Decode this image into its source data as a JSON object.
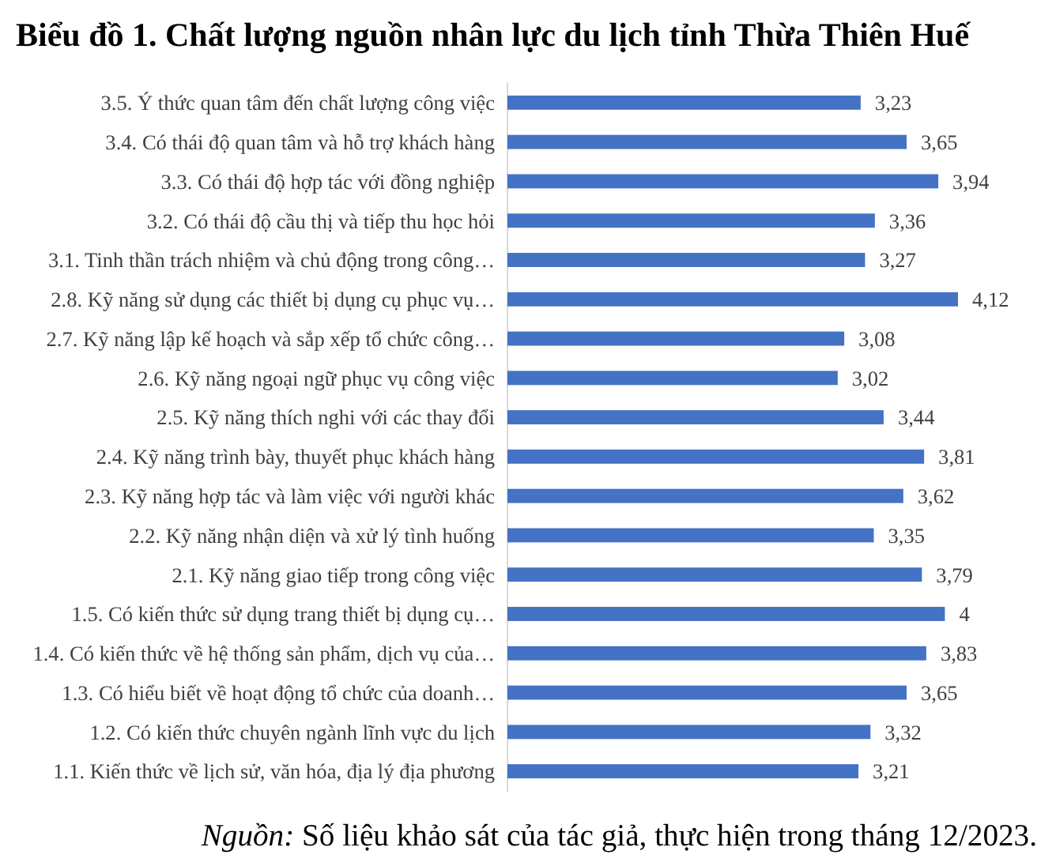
{
  "chart_data": {
    "type": "bar",
    "orientation": "horizontal",
    "title": "Biểu đồ 1. Chất lượng nguồn nhân lực du lịch tỉnh Thừa Thiên Huế",
    "categories": [
      "3.5. Ý thức quan tâm đến chất lượng công việc",
      "3.4. Có thái độ quan tâm và hỗ trợ khách hàng",
      "3.3. Có thái độ hợp tác với đồng nghiệp",
      "3.2. Có thái độ cầu thị và tiếp thu học hỏi",
      "3.1. Tinh thần trách nhiệm và chủ động trong công…",
      "2.8. Kỹ năng sử dụng các thiết bị dụng cụ phục vụ…",
      "2.7. Kỹ năng lập kế hoạch và sắp xếp tổ chức công…",
      "2.6. Kỹ năng ngoại ngữ phục vụ công việc",
      "2.5. Kỹ năng thích nghi với các thay đổi",
      "2.4. Kỹ năng trình bày, thuyết phục khách hàng",
      "2.3. Kỹ năng hợp tác và làm việc với người khác",
      "2.2. Kỹ năng nhận diện và xử lý tình huống",
      "2.1. Kỹ năng giao tiếp trong công việc",
      "1.5. Có kiến thức sử dụng trang thiết bị dụng cụ…",
      "1.4. Có kiến thức về hệ thống sản phẩm, dịch vụ của…",
      "1.3. Có hiểu biết về hoạt động tổ chức của doanh…",
      "1.2. Có kiến thức chuyên ngành lĩnh vực du lịch",
      "1.1. Kiến thức về lịch sử, văn hóa, địa lý địa phương"
    ],
    "values": [
      3.23,
      3.65,
      3.94,
      3.36,
      3.27,
      4.12,
      3.08,
      3.02,
      3.44,
      3.81,
      3.62,
      3.35,
      3.79,
      4,
      3.83,
      3.65,
      3.32,
      3.21
    ],
    "value_labels": [
      "3,23",
      "3,65",
      "3,94",
      "3,36",
      "3,27",
      "4,12",
      "3,08",
      "3,02",
      "3,44",
      "3,81",
      "3,62",
      "3,35",
      "3,79",
      "4",
      "3,83",
      "3,65",
      "3,32",
      "3,21"
    ],
    "color": "#4472c4",
    "annotations": [
      "Nguồn: Số liệu khảo sát của tác giả, thực hiện trong tháng 12/2023."
    ]
  }
}
